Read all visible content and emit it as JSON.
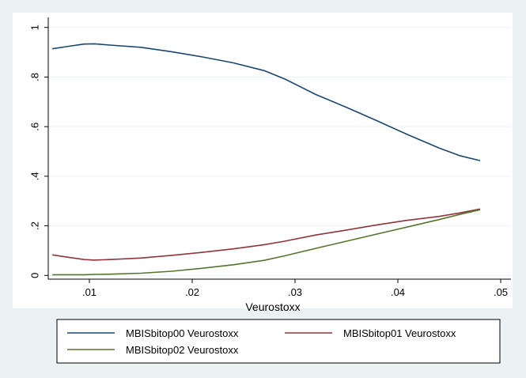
{
  "chart_data": {
    "type": "line",
    "xlabel": "Veurostoxx",
    "ylabel": "",
    "xlim": [
      0.006,
      0.051
    ],
    "ylim": [
      -0.015,
      1.015
    ],
    "x_ticks": [
      0.01,
      0.02,
      0.03,
      0.04,
      0.05
    ],
    "x_tick_labels": [
      ".01",
      ".02",
      ".03",
      ".04",
      ".05"
    ],
    "y_ticks": [
      0,
      0.2,
      0.4,
      0.6,
      0.8,
      1
    ],
    "y_tick_labels": [
      "0",
      ".2",
      ".4",
      ".6",
      ".8",
      "1"
    ],
    "grid": "horizontal",
    "legend_position": "bottom",
    "series": [
      {
        "name": "MBISbitop00 Veurostoxx",
        "color": "#1a476f",
        "points": [
          [
            0.0064,
            0.914
          ],
          [
            0.008,
            0.924
          ],
          [
            0.0095,
            0.933
          ],
          [
            0.0105,
            0.934
          ],
          [
            0.012,
            0.929
          ],
          [
            0.015,
            0.92
          ],
          [
            0.018,
            0.902
          ],
          [
            0.021,
            0.881
          ],
          [
            0.024,
            0.857
          ],
          [
            0.027,
            0.826
          ],
          [
            0.029,
            0.792
          ],
          [
            0.032,
            0.73
          ],
          [
            0.035,
            0.678
          ],
          [
            0.038,
            0.623
          ],
          [
            0.041,
            0.567
          ],
          [
            0.044,
            0.514
          ],
          [
            0.046,
            0.483
          ],
          [
            0.048,
            0.463
          ]
        ]
      },
      {
        "name": "MBISbitop01 Veurostoxx",
        "color": "#90353b",
        "points": [
          [
            0.0064,
            0.083
          ],
          [
            0.008,
            0.073
          ],
          [
            0.0095,
            0.064
          ],
          [
            0.0105,
            0.062
          ],
          [
            0.012,
            0.064
          ],
          [
            0.015,
            0.07
          ],
          [
            0.018,
            0.081
          ],
          [
            0.021,
            0.093
          ],
          [
            0.024,
            0.107
          ],
          [
            0.027,
            0.124
          ],
          [
            0.029,
            0.138
          ],
          [
            0.032,
            0.163
          ],
          [
            0.035,
            0.183
          ],
          [
            0.038,
            0.204
          ],
          [
            0.041,
            0.223
          ],
          [
            0.044,
            0.238
          ],
          [
            0.046,
            0.252
          ],
          [
            0.048,
            0.268
          ]
        ]
      },
      {
        "name": "MBISbitop02 Veurostoxx",
        "color": "#55752f",
        "points": [
          [
            0.0064,
            0.003
          ],
          [
            0.008,
            0.003
          ],
          [
            0.0095,
            0.003
          ],
          [
            0.0105,
            0.004
          ],
          [
            0.012,
            0.005
          ],
          [
            0.015,
            0.009
          ],
          [
            0.018,
            0.017
          ],
          [
            0.021,
            0.029
          ],
          [
            0.024,
            0.043
          ],
          [
            0.027,
            0.061
          ],
          [
            0.029,
            0.079
          ],
          [
            0.032,
            0.109
          ],
          [
            0.035,
            0.138
          ],
          [
            0.038,
            0.167
          ],
          [
            0.041,
            0.196
          ],
          [
            0.044,
            0.225
          ],
          [
            0.046,
            0.246
          ],
          [
            0.048,
            0.265
          ]
        ]
      }
    ]
  }
}
